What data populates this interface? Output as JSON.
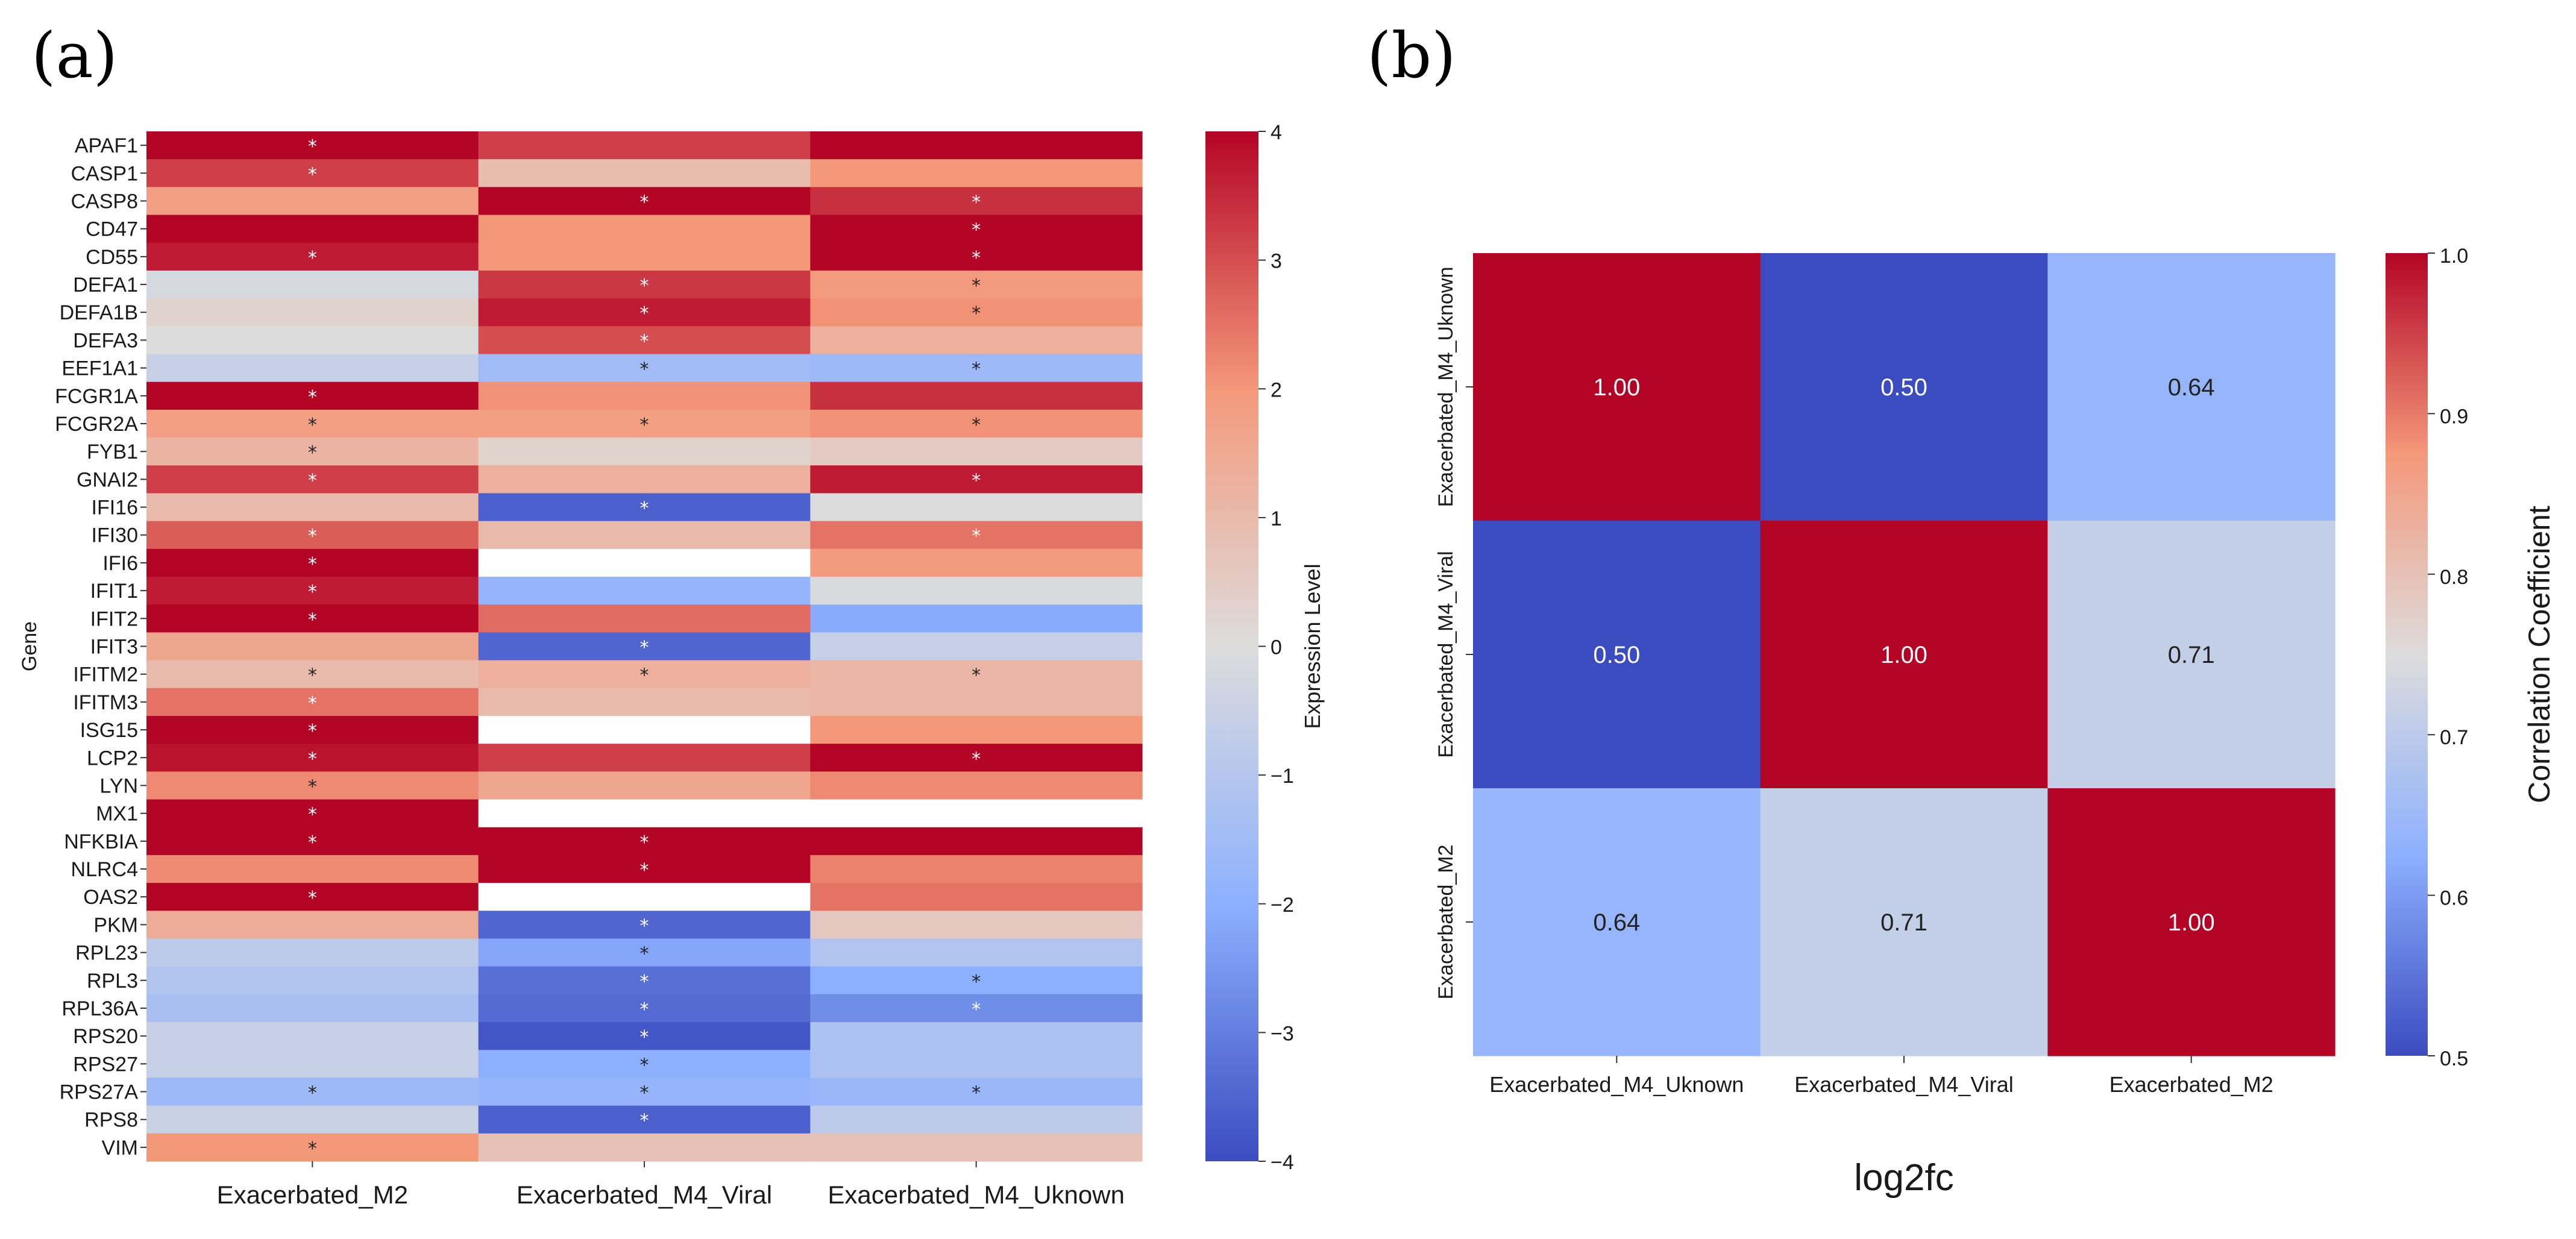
{
  "panels": {
    "a_label": "(a)",
    "b_label": "(b)"
  },
  "chart_data": [
    {
      "type": "heatmap",
      "panel": "(a)",
      "title": "",
      "xlabel": "",
      "ylabel": "Gene",
      "colorbar_label": "Expression Level",
      "colorbar_range": [
        -4,
        4
      ],
      "colorbar_ticks": [
        "4",
        "3",
        "2",
        "1",
        "0",
        "−1",
        "−2",
        "−3",
        "−4"
      ],
      "columns": [
        "Exacerbated_M2",
        "Exacerbated_M4_Viral",
        "Exacerbated_M4_Uknown"
      ],
      "rows": [
        "APAF1",
        "CASP1",
        "CASP8",
        "CD47",
        "CD55",
        "DEFA1",
        "DEFA1B",
        "DEFA3",
        "EEF1A1",
        "FCGR1A",
        "FCGR2A",
        "FYB1",
        "GNAI2",
        "IFI16",
        "IFI30",
        "IFI6",
        "IFIT1",
        "IFIT2",
        "IFIT3",
        "IFITM2",
        "IFITM3",
        "ISG15",
        "LCP2",
        "LYN",
        "MX1",
        "NFKBIA",
        "NLRC4",
        "OAS2",
        "PKM",
        "RPL23",
        "RPL3",
        "RPL36A",
        "RPS20",
        "RPS27",
        "RPS27A",
        "RPS8",
        "VIM"
      ],
      "values": [
        [
          4.0,
          3.2,
          4.0
        ],
        [
          3.2,
          0.9,
          2.0
        ],
        [
          1.8,
          4.0,
          3.4
        ],
        [
          4.0,
          2.0,
          4.0
        ],
        [
          3.7,
          2.0,
          4.0
        ],
        [
          -0.2,
          3.3,
          1.9
        ],
        [
          0.3,
          3.7,
          2.1
        ],
        [
          0.0,
          3.0,
          1.3
        ],
        [
          -0.6,
          -1.5,
          -1.6
        ],
        [
          4.0,
          2.1,
          3.4
        ],
        [
          1.8,
          1.8,
          2.1
        ],
        [
          1.2,
          0.3,
          0.5
        ],
        [
          3.2,
          1.3,
          3.7
        ],
        [
          1.0,
          -3.6,
          0.0
        ],
        [
          2.8,
          1.0,
          2.5
        ],
        [
          4.0,
          null,
          1.9
        ],
        [
          3.7,
          -1.8,
          -0.1
        ],
        [
          4.0,
          2.6,
          -2.1
        ],
        [
          1.6,
          -3.5,
          -0.6
        ],
        [
          1.0,
          1.3,
          1.1
        ],
        [
          2.5,
          1.0,
          1.1
        ],
        [
          4.0,
          null,
          2.0
        ],
        [
          3.8,
          3.2,
          4.0
        ],
        [
          2.2,
          1.6,
          2.2
        ],
        [
          4.0,
          null,
          null
        ],
        [
          4.0,
          4.0,
          4.0
        ],
        [
          2.2,
          4.0,
          2.3
        ],
        [
          4.0,
          null,
          2.5
        ],
        [
          1.4,
          -3.5,
          0.6
        ],
        [
          -0.8,
          -2.2,
          -1.1
        ],
        [
          -1.1,
          -3.3,
          -2.0
        ],
        [
          -1.3,
          -3.4,
          -2.7
        ],
        [
          -0.6,
          -3.8,
          -1.2
        ],
        [
          -0.6,
          -2.0,
          -1.2
        ],
        [
          -1.6,
          -1.8,
          -1.7
        ],
        [
          -0.5,
          -3.6,
          -0.8
        ],
        [
          2.0,
          0.8,
          0.8
        ]
      ],
      "significance_marks": [
        [
          "*",
          "",
          ""
        ],
        [
          "*",
          "",
          ""
        ],
        [
          "",
          "*",
          "*"
        ],
        [
          "",
          "",
          "*"
        ],
        [
          "*",
          "",
          "*"
        ],
        [
          "",
          "*",
          "*"
        ],
        [
          "",
          "*",
          "*"
        ],
        [
          "",
          "*",
          ""
        ],
        [
          "",
          "*",
          "*"
        ],
        [
          "*",
          "",
          ""
        ],
        [
          "*",
          "*",
          "*"
        ],
        [
          "*",
          "",
          ""
        ],
        [
          "*",
          "",
          "*"
        ],
        [
          "",
          "*",
          ""
        ],
        [
          "*",
          "",
          "*"
        ],
        [
          "*",
          "",
          ""
        ],
        [
          "*",
          "",
          ""
        ],
        [
          "*",
          "",
          ""
        ],
        [
          "",
          "*",
          ""
        ],
        [
          "*",
          "*",
          "*"
        ],
        [
          "*",
          "",
          ""
        ],
        [
          "*",
          "",
          ""
        ],
        [
          "*",
          "",
          "*"
        ],
        [
          "*",
          "",
          ""
        ],
        [
          "*",
          "",
          ""
        ],
        [
          "*",
          "*",
          ""
        ],
        [
          "",
          "*",
          ""
        ],
        [
          "*",
          "",
          ""
        ],
        [
          "",
          "*",
          ""
        ],
        [
          "",
          "*",
          ""
        ],
        [
          "",
          "*",
          "*"
        ],
        [
          "",
          "*",
          "*"
        ],
        [
          "",
          "*",
          ""
        ],
        [
          "",
          "*",
          ""
        ],
        [
          "*",
          "*",
          "*"
        ],
        [
          "",
          "*",
          ""
        ],
        [
          "*",
          "",
          ""
        ]
      ]
    },
    {
      "type": "heatmap",
      "panel": "(b)",
      "title": "",
      "xlabel": "log2fc",
      "ylabel": "",
      "colorbar_label": "Correlation Coefficient",
      "colorbar_range": [
        0.5,
        1.0
      ],
      "colorbar_ticks": [
        "1.0",
        "0.9",
        "0.8",
        "0.7",
        "0.6",
        "0.5"
      ],
      "columns": [
        "Exacerbated_M4_Uknown",
        "Exacerbated_M4_Viral",
        "Exacerbated_M2"
      ],
      "rows": [
        "Exacerbated_M4_Uknown",
        "Exacerbated_M4_Viral",
        "Exacerbated_M2"
      ],
      "values": [
        [
          1.0,
          0.5,
          0.64
        ],
        [
          0.5,
          1.0,
          0.71
        ],
        [
          0.64,
          0.71,
          1.0
        ]
      ],
      "value_labels": [
        [
          "1.00",
          "0.50",
          "0.64"
        ],
        [
          "0.50",
          "1.00",
          "0.71"
        ],
        [
          "0.64",
          "0.71",
          "1.00"
        ]
      ]
    }
  ]
}
